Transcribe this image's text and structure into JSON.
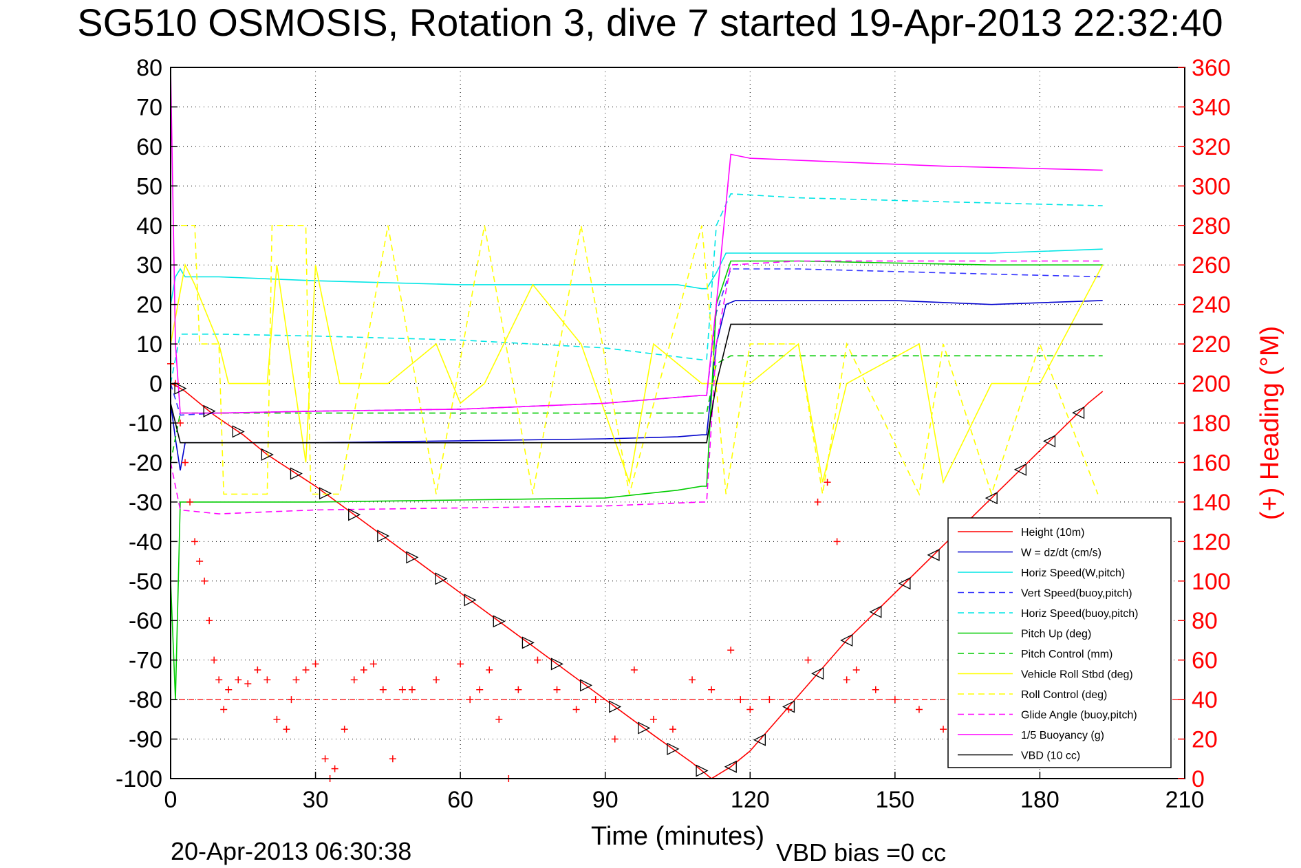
{
  "chart_data": {
    "type": "line",
    "title": "SG510 OSMOSIS, Rotation 3, dive 7 started 19-Apr-2013 22:32:40",
    "xlabel": "Time (minutes)",
    "ylabel_right": "(+) Heading (°M)",
    "xlim": [
      0,
      210
    ],
    "ylim": [
      -100,
      80
    ],
    "ylim_right": [
      0,
      360
    ],
    "x_ticks": [
      0,
      30,
      60,
      90,
      120,
      150,
      180,
      210
    ],
    "y_ticks": [
      80,
      70,
      60,
      50,
      40,
      30,
      20,
      10,
      0,
      -10,
      -20,
      -30,
      -40,
      -50,
      -60,
      -70,
      -80,
      -90,
      -100
    ],
    "y_right_ticks": [
      360,
      340,
      320,
      300,
      280,
      260,
      240,
      220,
      200,
      180,
      160,
      140,
      120,
      100,
      80,
      60,
      40,
      20,
      0
    ],
    "grid": true,
    "legend_position": "bottom-right",
    "footer_left": "20-Apr-2013 06:30:38",
    "footer_right": "VBD bias =0 cc",
    "series": [
      {
        "name": "Height (10m)",
        "color": "#ff0000",
        "dash": "solid",
        "x": [
          0,
          1,
          3,
          6,
          9,
          12,
          15,
          20,
          25,
          30,
          40,
          50,
          60,
          70,
          80,
          90,
          100,
          108,
          112,
          116,
          120,
          130,
          140,
          150,
          160,
          170,
          180,
          190,
          193
        ],
        "y": [
          0,
          -0.5,
          -2,
          -5,
          -8,
          -10.5,
          -13,
          -18,
          -22,
          -26,
          -35,
          -44,
          -53,
          -62,
          -71,
          -80,
          -89,
          -96,
          -100,
          -97,
          -93,
          -79,
          -65,
          -53,
          -41,
          -29,
          -17,
          -5,
          -2
        ]
      },
      {
        "name": "W = dz/dt (cm/s)",
        "color": "#0000cc",
        "dash": "solid",
        "x": [
          0,
          1,
          2,
          3,
          10,
          30,
          60,
          90,
          105,
          110,
          111,
          113,
          115,
          117,
          130,
          150,
          170,
          193
        ],
        "y": [
          -5,
          -14,
          -22,
          -15,
          -15,
          -15,
          -14.5,
          -14,
          -13.5,
          -13,
          -13,
          10,
          20,
          21,
          21,
          21,
          20,
          21
        ]
      },
      {
        "name": "Horiz Speed(W,pitch)",
        "color": "#00e5e5",
        "dash": "solid",
        "x": [
          0,
          1,
          2,
          3,
          10,
          30,
          60,
          90,
          105,
          110,
          111,
          113,
          115,
          117,
          130,
          150,
          170,
          193
        ],
        "y": [
          20,
          27,
          29,
          27,
          27,
          26,
          25,
          25,
          25,
          24,
          24,
          28,
          33,
          33,
          33,
          33,
          33,
          34
        ]
      },
      {
        "name": "Vert Speed(buoy,pitch)",
        "color": "#3333ff",
        "dash": "dashed",
        "x": [
          0,
          2,
          10,
          30,
          60,
          90,
          110,
          111,
          113,
          116,
          130,
          160,
          193
        ],
        "y": [
          0,
          -8,
          -7.5,
          -7,
          -6.5,
          -5,
          -3,
          -3,
          18,
          29,
          29,
          28,
          27
        ]
      },
      {
        "name": "Horiz Speed(buoy,pitch)",
        "color": "#00e5e5",
        "dash": "dashed",
        "x": [
          0,
          2,
          10,
          30,
          60,
          90,
          110,
          111,
          113,
          116,
          130,
          160,
          193
        ],
        "y": [
          0,
          12.5,
          12.5,
          12,
          11,
          9,
          6,
          6,
          40,
          48,
          47,
          46,
          45
        ]
      },
      {
        "name": "Pitch Up (deg)",
        "color": "#00cc00",
        "dash": "solid",
        "x": [
          0,
          1,
          2,
          3,
          10,
          30,
          60,
          90,
          105,
          110,
          111,
          113,
          116,
          130,
          150,
          170,
          193
        ],
        "y": [
          -50,
          -80,
          -30,
          -30,
          -30,
          -30,
          -29.5,
          -29,
          -27,
          -26,
          -26,
          20,
          31,
          31,
          30.5,
          30,
          30
        ]
      },
      {
        "name": "Pitch Control (mm)",
        "color": "#00cc00",
        "dash": "dashed",
        "x": [
          0,
          2,
          10,
          60,
          111,
          113,
          116,
          193
        ],
        "y": [
          -20,
          -7.5,
          -7.5,
          -7.5,
          -7.5,
          5,
          7,
          7
        ]
      },
      {
        "name": "Vehicle Roll Stbd (deg)",
        "color": "#ffff00",
        "dash": "solid",
        "x": [
          0,
          3,
          5,
          10,
          12,
          20,
          22,
          28,
          30,
          35,
          45,
          55,
          60,
          65,
          75,
          85,
          95,
          100,
          110,
          115,
          120,
          130,
          135,
          140,
          155,
          160,
          170,
          180,
          193
        ],
        "y": [
          10,
          30,
          25,
          10,
          0,
          0,
          30,
          -20,
          30,
          0,
          0,
          10,
          -5,
          0,
          25,
          10,
          -25,
          10,
          0,
          0,
          0,
          10,
          -25,
          0,
          10,
          -25,
          0,
          0,
          30
        ]
      },
      {
        "name": "Roll Control (deg)",
        "color": "#ffff00",
        "dash": "dashed",
        "x": [
          0,
          5,
          6,
          10,
          11,
          20,
          21,
          28,
          29,
          35,
          45,
          55,
          65,
          75,
          85,
          95,
          110,
          115,
          120,
          130,
          135,
          140,
          155,
          160,
          170,
          180,
          192
        ],
        "y": [
          40,
          40,
          10,
          10,
          -28,
          -28,
          40,
          40,
          -28,
          -28,
          40,
          -28,
          40,
          -28,
          40,
          -28,
          40,
          -28,
          10,
          10,
          -28,
          10,
          -28,
          10,
          -28,
          10,
          -28
        ]
      },
      {
        "name": "Glide Angle (buoy,pitch)",
        "color": "#ff00ff",
        "dash": "dashed",
        "x": [
          0,
          2,
          10,
          30,
          60,
          90,
          110,
          111,
          113,
          116,
          130,
          160,
          193
        ],
        "y": [
          -20,
          -32,
          -33,
          -32,
          -31.5,
          -31,
          -30,
          -30,
          10,
          30,
          31,
          31,
          31
        ]
      },
      {
        "name": "1/5 Buoyancy (g)",
        "color": "#ff00ff",
        "dash": "solid",
        "x": [
          0,
          1,
          2,
          10,
          30,
          60,
          90,
          100,
          110,
          111,
          113,
          116,
          120,
          140,
          160,
          193
        ],
        "y": [
          80,
          10,
          -7.5,
          -7.5,
          -7,
          -6.5,
          -5,
          -4,
          -3,
          -3,
          20,
          58,
          57,
          56,
          55,
          54
        ]
      },
      {
        "name": "VBD (10 cc)",
        "color": "#000000",
        "dash": "solid",
        "x": [
          0,
          2,
          10,
          30,
          60,
          90,
          110,
          111,
          113,
          116,
          120,
          160,
          193
        ],
        "y": [
          -5,
          -15,
          -15,
          -15,
          -15,
          -15,
          -15,
          -15,
          0,
          15,
          15,
          15,
          15
        ]
      }
    ],
    "heading_series": {
      "name": "Heading",
      "color": "#ff0000",
      "marker": "+",
      "x": [
        0,
        1,
        2,
        3,
        4,
        5,
        6,
        7,
        8,
        9,
        10,
        11,
        12,
        14,
        16,
        18,
        20,
        22,
        24,
        25,
        26,
        28,
        30,
        32,
        33,
        34,
        36,
        38,
        40,
        42,
        44,
        46,
        48,
        50,
        55,
        60,
        62,
        64,
        66,
        68,
        70,
        72,
        76,
        80,
        84,
        88,
        92,
        96,
        100,
        104,
        108,
        112,
        116,
        118,
        120,
        124,
        128,
        132,
        134,
        136,
        138,
        140,
        142,
        146,
        150,
        155,
        160
      ],
      "y": [
        210,
        200,
        180,
        160,
        140,
        120,
        110,
        100,
        80,
        60,
        50,
        35,
        45,
        50,
        48,
        55,
        50,
        30,
        25,
        40,
        50,
        55,
        58,
        10,
        0,
        5,
        25,
        50,
        55,
        58,
        45,
        10,
        45,
        45,
        50,
        58,
        40,
        45,
        55,
        30,
        0,
        45,
        60,
        45,
        35,
        40,
        20,
        55,
        30,
        25,
        50,
        45,
        65,
        40,
        35,
        40,
        35,
        60,
        140,
        150,
        120,
        50,
        55,
        45,
        40,
        35,
        25
      ]
    },
    "heading_reference": 40
  }
}
